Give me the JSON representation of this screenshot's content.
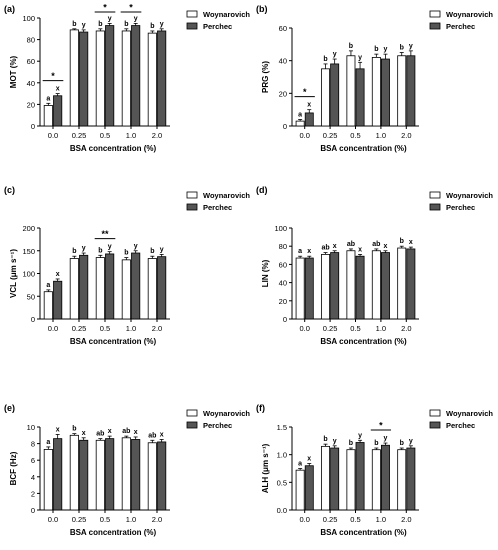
{
  "figure": {
    "legend_labels": [
      "Woynarovich",
      "Perchec"
    ],
    "colors": {
      "woynarovich": "#ffffff",
      "perchec": "#555555",
      "axis": "#000000"
    }
  },
  "chart_data": [
    {
      "panel": "(a)",
      "type": "bar",
      "ylabel": "MOT (%)",
      "xlabel": "BSA concentration (%)",
      "categories": [
        "0.0",
        "0.25",
        "0.5",
        "1.0",
        "2.0"
      ],
      "ylim": [
        0,
        100
      ],
      "yticks": [
        0,
        20,
        40,
        60,
        80,
        100
      ],
      "series": [
        {
          "name": "Woynarovich",
          "values": [
            19,
            89,
            88,
            88,
            86
          ],
          "errors": [
            2,
            1,
            2,
            2,
            2
          ],
          "letters": [
            "a",
            "b",
            "b",
            "b",
            "b"
          ]
        },
        {
          "name": "Perchec",
          "values": [
            28,
            87,
            93,
            93,
            88
          ],
          "errors": [
            2,
            2,
            2,
            2,
            2
          ],
          "letters": [
            "x",
            "y",
            "y",
            "y",
            "y"
          ]
        }
      ],
      "significance": [
        {
          "category": "0.0",
          "label": "*"
        },
        {
          "category": "0.5",
          "label": "*"
        },
        {
          "category": "1.0",
          "label": "*"
        }
      ]
    },
    {
      "panel": "(b)",
      "type": "bar",
      "ylabel": "PRG (%)",
      "xlabel": "BSA concentration (%)",
      "categories": [
        "0.0",
        "0.25",
        "0.5",
        "1.0",
        "2.0"
      ],
      "ylim": [
        0,
        60
      ],
      "yticks": [
        0,
        20,
        40,
        60
      ],
      "series": [
        {
          "name": "Woynarovich",
          "values": [
            3,
            35,
            43,
            42,
            43
          ],
          "errors": [
            1,
            3,
            3,
            2,
            2
          ],
          "letters": [
            "a",
            "b",
            "b",
            "b",
            "b"
          ]
        },
        {
          "name": "Perchec",
          "values": [
            8,
            38,
            35,
            41,
            43
          ],
          "errors": [
            2,
            3,
            4,
            3,
            3
          ],
          "letters": [
            "x",
            "y",
            "y",
            "y",
            "y"
          ]
        }
      ],
      "significance": [
        {
          "category": "0.0",
          "label": "*"
        }
      ]
    },
    {
      "panel": "(c)",
      "type": "bar",
      "ylabel": "VCL (μm s⁻¹)",
      "xlabel": "BSA concentration (%)",
      "categories": [
        "0.0",
        "0.25",
        "0.5",
        "1.0",
        "2.0"
      ],
      "ylim": [
        0,
        200
      ],
      "yticks": [
        0,
        50,
        100,
        150,
        200
      ],
      "series": [
        {
          "name": "Woynarovich",
          "values": [
            60,
            133,
            135,
            130,
            133
          ],
          "errors": [
            4,
            5,
            5,
            5,
            5
          ],
          "letters": [
            "a",
            "b",
            "b",
            "b",
            "b"
          ]
        },
        {
          "name": "Perchec",
          "values": [
            83,
            140,
            143,
            145,
            137
          ],
          "errors": [
            5,
            5,
            5,
            5,
            5
          ],
          "letters": [
            "x",
            "y",
            "y",
            "y",
            "y"
          ]
        }
      ],
      "significance": [
        {
          "category": "0.5",
          "label": "**"
        }
      ]
    },
    {
      "panel": "(d)",
      "type": "bar",
      "ylabel": "LIN (%)",
      "xlabel": "BSA concentration (%)",
      "categories": [
        "0.0",
        "0.25",
        "0.5",
        "1.0",
        "2.0"
      ],
      "ylim": [
        0,
        100
      ],
      "yticks": [
        0,
        20,
        40,
        60,
        80,
        100
      ],
      "series": [
        {
          "name": "Woynarovich",
          "values": [
            67,
            71,
            75,
            75,
            78
          ],
          "errors": [
            2,
            2,
            2,
            2,
            2
          ],
          "letters": [
            "a",
            "ab",
            "ab",
            "ab",
            "b"
          ]
        },
        {
          "name": "Perchec",
          "values": [
            67,
            73,
            69,
            73,
            77
          ],
          "errors": [
            2,
            2,
            2,
            2,
            2
          ],
          "letters": [
            "x",
            "x",
            "x",
            "x",
            "x"
          ]
        }
      ],
      "significance": []
    },
    {
      "panel": "(e)",
      "type": "bar",
      "ylabel": "BCF (Hz)",
      "xlabel": "BSA concentration (%)",
      "categories": [
        "0.0",
        "0.25",
        "0.5",
        "1.0",
        "2.0"
      ],
      "ylim": [
        0,
        10
      ],
      "yticks": [
        0,
        2,
        4,
        6,
        8,
        10
      ],
      "series": [
        {
          "name": "Woynarovich",
          "values": [
            7.3,
            9.0,
            8.4,
            8.7,
            8.1
          ],
          "errors": [
            0.3,
            0.2,
            0.2,
            0.2,
            0.3
          ],
          "letters": [
            "a",
            "b",
            "ab",
            "ab",
            "ab"
          ]
        },
        {
          "name": "Perchec",
          "values": [
            8.6,
            8.4,
            8.6,
            8.5,
            8.2
          ],
          "errors": [
            0.5,
            0.3,
            0.3,
            0.3,
            0.3
          ],
          "letters": [
            "x",
            "x",
            "x",
            "x",
            "x"
          ]
        }
      ],
      "significance": []
    },
    {
      "panel": "(f)",
      "type": "bar",
      "ylabel": "ALH (μm s⁻¹)",
      "xlabel": "BSA concentration (%)",
      "categories": [
        "0.0",
        "0.25",
        "0.5",
        "1.0",
        "2.0"
      ],
      "ylim": [
        0,
        1.5
      ],
      "yticks": [
        0.0,
        0.5,
        1.0,
        1.5
      ],
      "series": [
        {
          "name": "Woynarovich",
          "values": [
            0.72,
            1.15,
            1.09,
            1.09,
            1.09
          ],
          "errors": [
            0.03,
            0.04,
            0.03,
            0.03,
            0.03
          ],
          "letters": [
            "a",
            "b",
            "b",
            "b",
            "b"
          ]
        },
        {
          "name": "Perchec",
          "values": [
            0.8,
            1.12,
            1.22,
            1.17,
            1.12
          ],
          "errors": [
            0.04,
            0.04,
            0.04,
            0.04,
            0.04
          ],
          "letters": [
            "x",
            "y",
            "y",
            "y",
            "y"
          ]
        }
      ],
      "significance": [
        {
          "category": "1.0",
          "label": "*"
        }
      ]
    }
  ]
}
